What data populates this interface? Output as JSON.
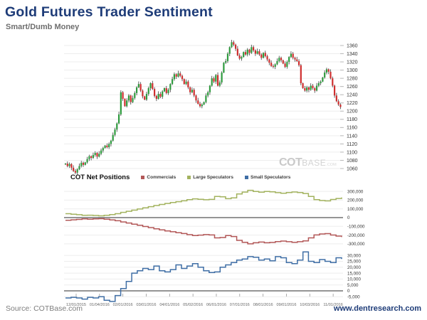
{
  "page": {
    "title": "Gold Futures Trader Sentiment",
    "subtitle": "Smart/Dumb Money"
  },
  "footer": {
    "source": "Source: COTBase.com",
    "site": "www.dentresearch.com"
  },
  "watermark": {
    "part1": "COT",
    "part2": "BASE",
    "part3": ".COM"
  },
  "colors": {
    "title": "#1e3c78",
    "subtitle": "#6e6e6e",
    "source": "#7e7e7e",
    "site": "#1e3c78",
    "watermark": "#c9c9c9",
    "axis_text": "#333333",
    "date_text": "#666666",
    "grid": "#ededed",
    "zero_line": "#565656"
  },
  "chart_data": [
    {
      "type": "candlestick",
      "ylim": [
        1040,
        1380
      ],
      "y_ticks": [
        1360,
        1340,
        1320,
        1300,
        1280,
        1260,
        1240,
        1220,
        1200,
        1180,
        1160,
        1140,
        1120,
        1100,
        1080,
        1060
      ],
      "grid": true,
      "up_color": "#2e9b3e",
      "down_color": "#cf2f2f",
      "wick_color": "#3c3c3c",
      "first_open": 1070,
      "closes": [
        1072,
        1066,
        1071,
        1062,
        1054,
        1050,
        1058,
        1066,
        1074,
        1069,
        1075,
        1083,
        1090,
        1086,
        1093,
        1098,
        1089,
        1096,
        1104,
        1110,
        1116,
        1112,
        1120,
        1128,
        1142,
        1155,
        1170,
        1192,
        1246,
        1230,
        1212,
        1226,
        1238,
        1222,
        1232,
        1244,
        1258,
        1266,
        1250,
        1236,
        1228,
        1242,
        1256,
        1268,
        1254,
        1237,
        1230,
        1242,
        1235,
        1248,
        1256,
        1244,
        1252,
        1266,
        1278,
        1290,
        1284,
        1292,
        1286,
        1278,
        1266,
        1272,
        1258,
        1246,
        1252,
        1238,
        1226,
        1218,
        1212,
        1216,
        1222,
        1238,
        1246,
        1262,
        1280,
        1272,
        1288,
        1262,
        1270,
        1294,
        1318,
        1322,
        1340,
        1356,
        1368,
        1362,
        1352,
        1336,
        1328,
        1332,
        1344,
        1338,
        1350,
        1342,
        1356,
        1348,
        1340,
        1346,
        1338,
        1330,
        1342,
        1334,
        1326,
        1318,
        1310,
        1308,
        1314,
        1322,
        1330,
        1324,
        1316,
        1308,
        1320,
        1332,
        1340,
        1330,
        1326,
        1322,
        1312,
        1268,
        1256,
        1250,
        1258,
        1252,
        1262,
        1256,
        1250,
        1262,
        1268,
        1272,
        1282,
        1294,
        1302,
        1296,
        1280,
        1262,
        1238,
        1224,
        1216,
        1210
      ]
    },
    {
      "type": "line",
      "title": "COT Net Positions",
      "legend_position": "top",
      "grid": true,
      "main_ylim": [
        -300000,
        300000
      ],
      "main_axis_ticks": [
        300000,
        200000,
        100000,
        0,
        -100000,
        -200000,
        -300000
      ],
      "sub_ylim": [
        -5000,
        30000
      ],
      "sub_axis_ticks": [
        30000,
        25000,
        20000,
        15000,
        10000,
        5000,
        0,
        -5000
      ],
      "x_labels": [
        "12/01/2015",
        "01/04/2016",
        "02/01/2016",
        "03/01/2016",
        "04/01/2016",
        "05/02/2016",
        "06/01/2016",
        "07/01/2016",
        "08/01/2016",
        "09/01/2016",
        "10/03/2016",
        "11/01/2016"
      ],
      "series": [
        {
          "name": "Commercials",
          "color": "#b25757",
          "panel": "main",
          "values": [
            -30000,
            -25000,
            -20000,
            -15000,
            -18000,
            -14000,
            -12000,
            -18000,
            -26000,
            -36000,
            -50000,
            -62000,
            -75000,
            -88000,
            -102000,
            -115000,
            -128000,
            -140000,
            -152000,
            -162000,
            -172000,
            -182000,
            -195000,
            -205000,
            -200000,
            -194000,
            -198000,
            -232000,
            -228000,
            -206000,
            -216000,
            -260000,
            -282000,
            -300000,
            -288000,
            -280000,
            -288000,
            -284000,
            -275000,
            -268000,
            -276000,
            -283000,
            -276000,
            -266000,
            -232000,
            -198000,
            -187000,
            -183000,
            -199000,
            -211000,
            -223000
          ]
        },
        {
          "name": "Large Speculators",
          "color": "#a3b35f",
          "panel": "main",
          "values": [
            45000,
            38000,
            33000,
            26000,
            28000,
            24000,
            20000,
            26000,
            34000,
            45000,
            60000,
            72000,
            85000,
            98000,
            112000,
            125000,
            138000,
            150000,
            162000,
            172000,
            182000,
            192000,
            205000,
            215000,
            210000,
            204000,
            208000,
            242000,
            238000,
            216000,
            226000,
            270000,
            292000,
            312000,
            298000,
            290000,
            298000,
            294000,
            285000,
            278000,
            286000,
            293000,
            286000,
            276000,
            242000,
            206000,
            195000,
            191000,
            207000,
            219000,
            231000
          ]
        },
        {
          "name": "Small Speculators",
          "color": "#3f6ea5",
          "panel": "sub",
          "values": [
            -6000,
            -5500,
            -6000,
            -7000,
            -5500,
            -6000,
            -5000,
            -8000,
            -9000,
            -4000,
            2000,
            8000,
            15000,
            17000,
            19000,
            18000,
            21000,
            17000,
            16000,
            18000,
            22000,
            19000,
            21000,
            23000,
            20000,
            17000,
            15500,
            16000,
            20000,
            22000,
            24000,
            26000,
            27000,
            29000,
            28500,
            26000,
            27000,
            25500,
            29000,
            28000,
            24000,
            23000,
            26000,
            33000,
            25000,
            24000,
            26500,
            25000,
            24000,
            28000,
            27000
          ]
        }
      ]
    }
  ]
}
